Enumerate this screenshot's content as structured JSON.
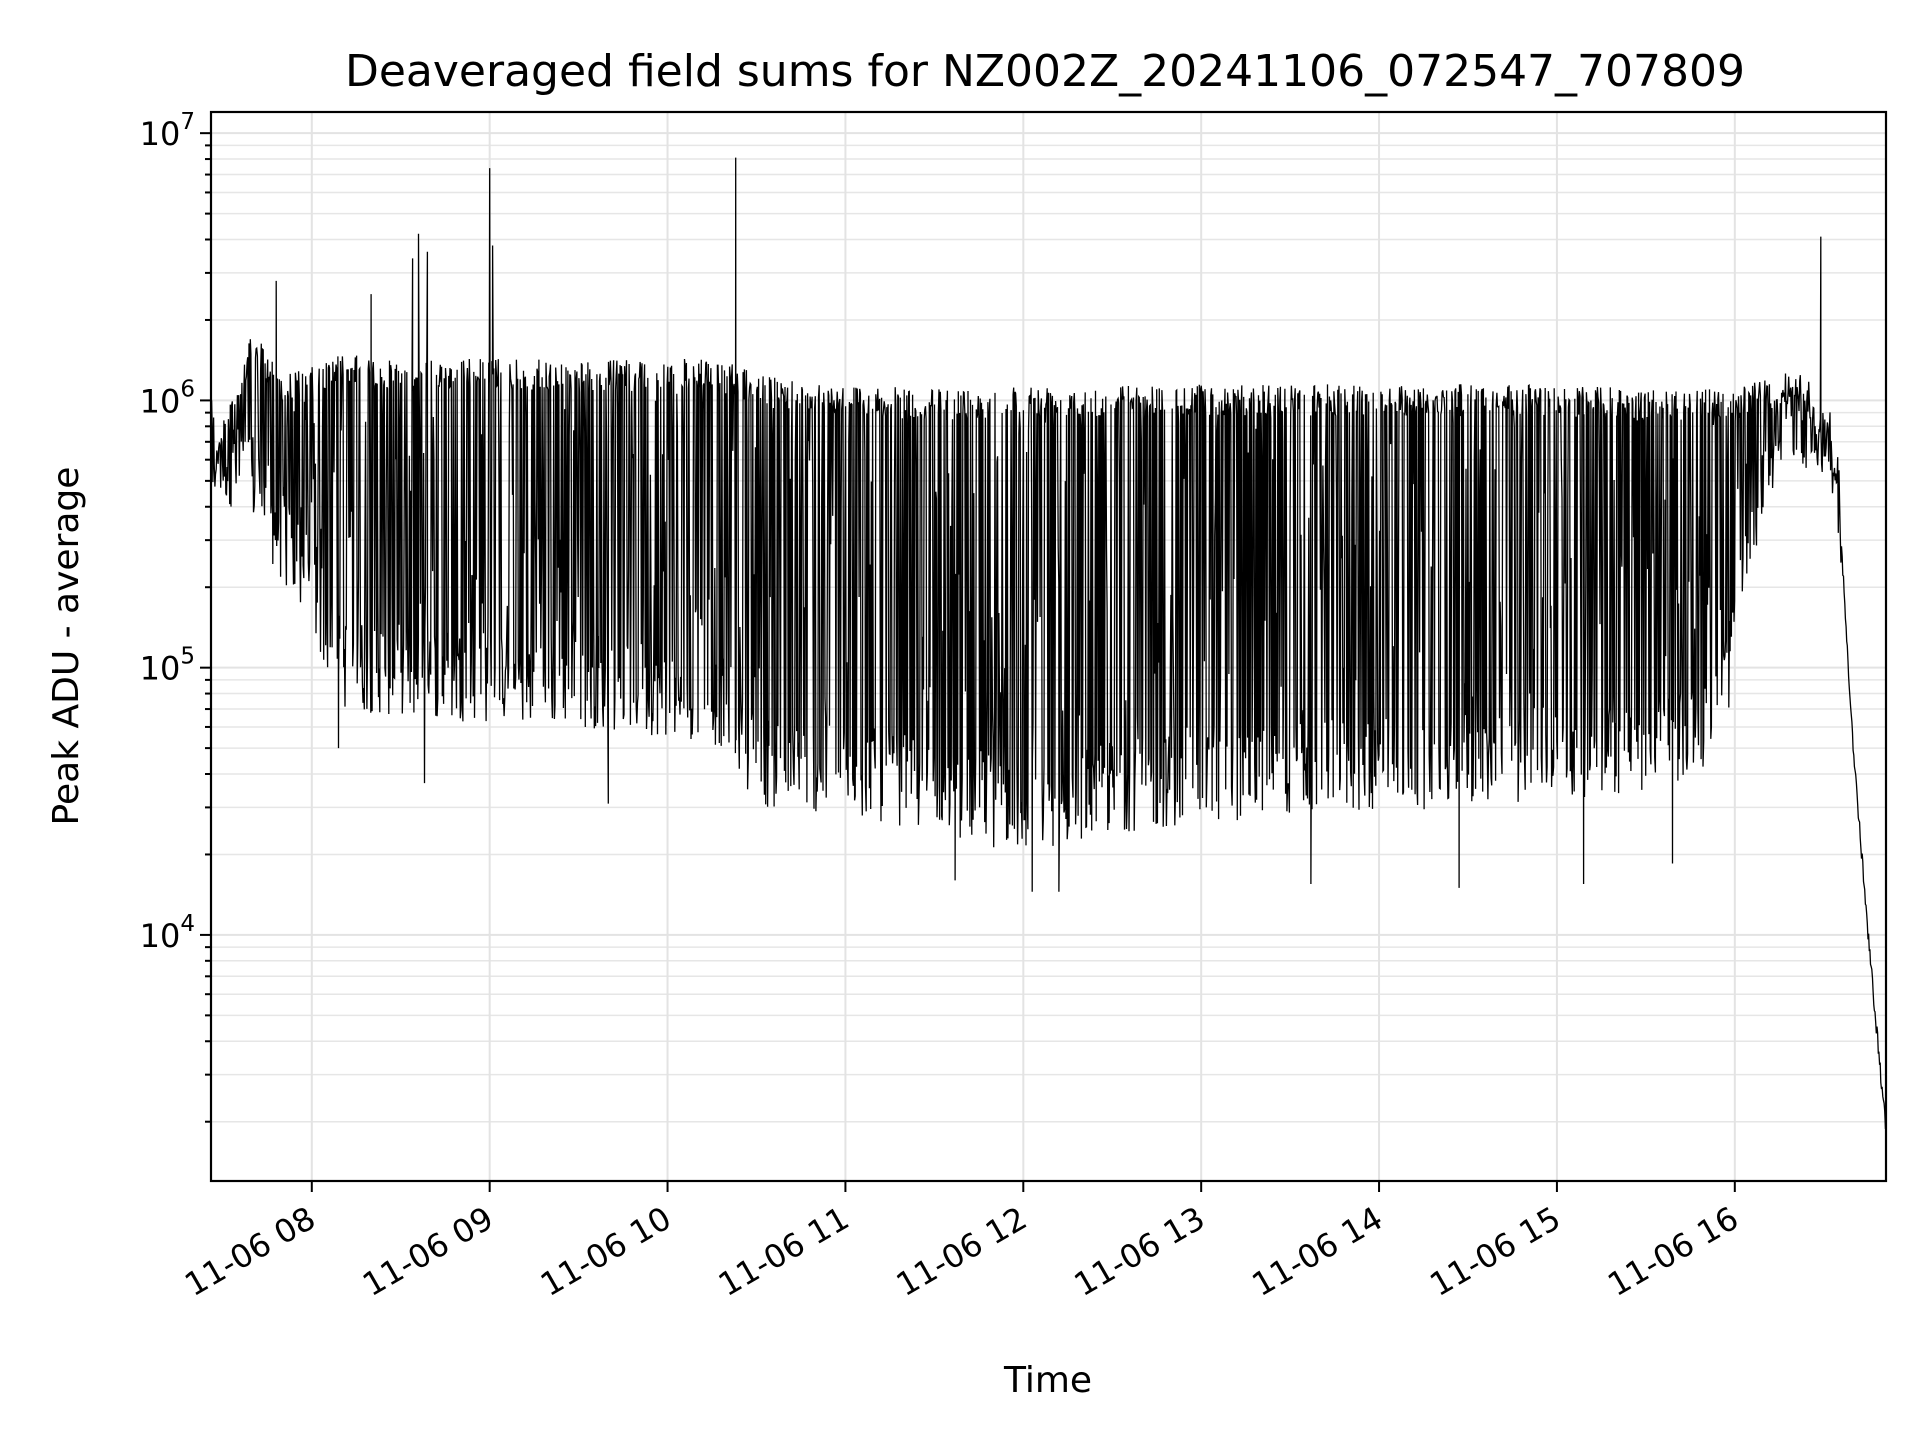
{
  "chart_data": {
    "type": "line",
    "title": "Deaveraged field sums for NZ002Z_20241106_072547_707809",
    "xlabel": "Time",
    "ylabel": "Peak ADU - average",
    "yscale": "log",
    "grid": true,
    "xlim": [
      "2024-11-06 07:26",
      "2024-11-06 16:51"
    ],
    "ylim": [
      1200,
      12000000
    ],
    "x_ticks": [
      {
        "value": "2024-11-06 08:00",
        "label": "11-06 08"
      },
      {
        "value": "2024-11-06 09:00",
        "label": "11-06 09"
      },
      {
        "value": "2024-11-06 10:00",
        "label": "11-06 10"
      },
      {
        "value": "2024-11-06 11:00",
        "label": "11-06 11"
      },
      {
        "value": "2024-11-06 12:00",
        "label": "11-06 12"
      },
      {
        "value": "2024-11-06 13:00",
        "label": "11-06 13"
      },
      {
        "value": "2024-11-06 14:00",
        "label": "11-06 14"
      },
      {
        "value": "2024-11-06 15:00",
        "label": "11-06 15"
      },
      {
        "value": "2024-11-06 16:00",
        "label": "11-06 16"
      }
    ],
    "y_ticks": [
      {
        "value": 10000,
        "base": "10",
        "exp": "4"
      },
      {
        "value": 100000,
        "base": "10",
        "exp": "5"
      },
      {
        "value": 1000000,
        "base": "10",
        "exp": "6"
      },
      {
        "value": 10000000,
        "base": "10",
        "exp": "7"
      }
    ],
    "series": [
      {
        "color": "#000000",
        "envelope": {
          "x": [
            "2024-11-06 07:26",
            "2024-11-06 07:40",
            "2024-11-06 07:50",
            "2024-11-06 07:58",
            "2024-11-06 08:10",
            "2024-11-06 08:30",
            "2024-11-06 09:00",
            "2024-11-06 09:30",
            "2024-11-06 10:00",
            "2024-11-06 10:20",
            "2024-11-06 10:30",
            "2024-11-06 11:00",
            "2024-11-06 11:30",
            "2024-11-06 12:00",
            "2024-11-06 12:30",
            "2024-11-06 13:00",
            "2024-11-06 13:30",
            "2024-11-06 14:00",
            "2024-11-06 14:30",
            "2024-11-06 15:00",
            "2024-11-06 15:30",
            "2024-11-06 15:50",
            "2024-11-06 16:00",
            "2024-11-06 16:10",
            "2024-11-06 16:20",
            "2024-11-06 16:30",
            "2024-11-06 16:35",
            "2024-11-06 16:40",
            "2024-11-06 16:45",
            "2024-11-06 16:51"
          ],
          "high": [
            600000,
            1800000,
            1300000,
            1300000,
            1500000,
            1400000,
            1450000,
            1400000,
            1450000,
            1400000,
            1250000,
            1150000,
            1100000,
            1150000,
            1150000,
            1150000,
            1150000,
            1150000,
            1150000,
            1150000,
            1100000,
            1100000,
            1100000,
            1200000,
            1300000,
            900000,
            600000,
            60000,
            12000,
            2000
          ],
          "low": [
            450000,
            350000,
            200000,
            150000,
            70000,
            65000,
            62000,
            60000,
            55000,
            50000,
            30000,
            28000,
            24000,
            20000,
            24000,
            26000,
            28000,
            29000,
            30000,
            32000,
            34000,
            40000,
            80000,
            400000,
            600000,
            500000,
            300000,
            40000,
            8000,
            1700
          ]
        },
        "spikes": [
          {
            "x": "2024-11-06 07:48",
            "y": 2800000
          },
          {
            "x": "2024-11-06 08:20",
            "y": 2500000
          },
          {
            "x": "2024-11-06 08:34",
            "y": 3400000
          },
          {
            "x": "2024-11-06 08:36",
            "y": 4200000
          },
          {
            "x": "2024-11-06 08:39",
            "y": 3600000
          },
          {
            "x": "2024-11-06 09:00",
            "y": 7400000
          },
          {
            "x": "2024-11-06 09:01",
            "y": 3800000
          },
          {
            "x": "2024-11-06 10:23",
            "y": 8100000
          },
          {
            "x": "2024-11-06 16:29",
            "y": 4100000
          }
        ],
        "dips": [
          {
            "x": "2024-11-06 08:09",
            "y": 50000
          },
          {
            "x": "2024-11-06 08:38",
            "y": 37000
          },
          {
            "x": "2024-11-06 09:40",
            "y": 31000
          },
          {
            "x": "2024-11-06 11:37",
            "y": 16000
          },
          {
            "x": "2024-11-06 12:03",
            "y": 14500
          },
          {
            "x": "2024-11-06 12:12",
            "y": 14500
          },
          {
            "x": "2024-11-06 13:37",
            "y": 15500
          },
          {
            "x": "2024-11-06 14:27",
            "y": 15000
          },
          {
            "x": "2024-11-06 15:09",
            "y": 15500
          },
          {
            "x": "2024-11-06 15:39",
            "y": 18500
          }
        ]
      }
    ]
  }
}
